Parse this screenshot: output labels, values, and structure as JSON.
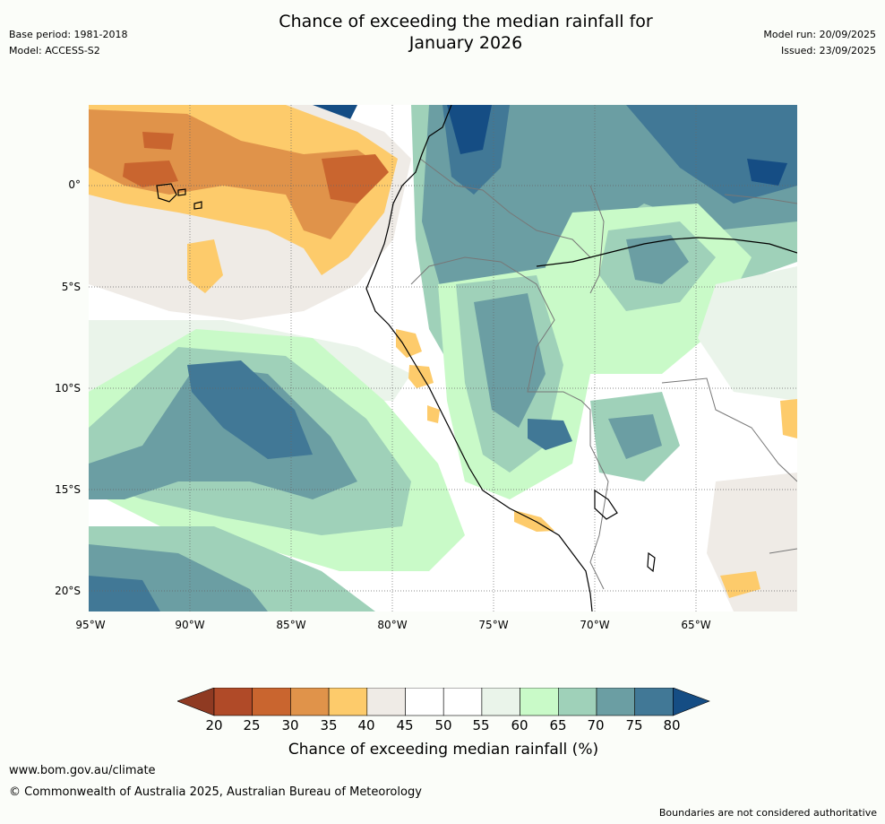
{
  "header": {
    "title_line1": "Chance of exceeding the median rainfall for",
    "title_line2": "January 2026",
    "base_period": "Base period: 1981-2018",
    "model": "Model: ACCESS-S2",
    "model_run": "Model run: 20/09/2025",
    "issued": "Issued: 23/09/2025"
  },
  "map": {
    "lat_labels": [
      "0°",
      "5°S",
      "10°S",
      "15°S",
      "20°S"
    ],
    "lon_labels": [
      "95°W",
      "90°W",
      "85°W",
      "80°W",
      "75°W",
      "70°W",
      "65°W"
    ]
  },
  "colorbar": {
    "ticks": [
      "20",
      "25",
      "30",
      "35",
      "40",
      "45",
      "50",
      "55",
      "60",
      "65",
      "70",
      "75",
      "80"
    ],
    "colors": [
      "#8f3a22",
      "#b04a28",
      "#c9652f",
      "#e0934a",
      "#fdcb6b",
      "#efebe6",
      "#ffffff",
      "#ffffff",
      "#eaf4ea",
      "#c9fac8",
      "#9fd1b9",
      "#6b9ea3",
      "#417896",
      "#154d84"
    ],
    "label": "Chance of exceeding median rainfall (%)"
  },
  "footer": {
    "url": "www.bom.gov.au/climate",
    "copyright": "© Commonwealth of Australia 2025, Australian Bureau of Meteorology",
    "note": "Boundaries are not considered authoritative"
  }
}
